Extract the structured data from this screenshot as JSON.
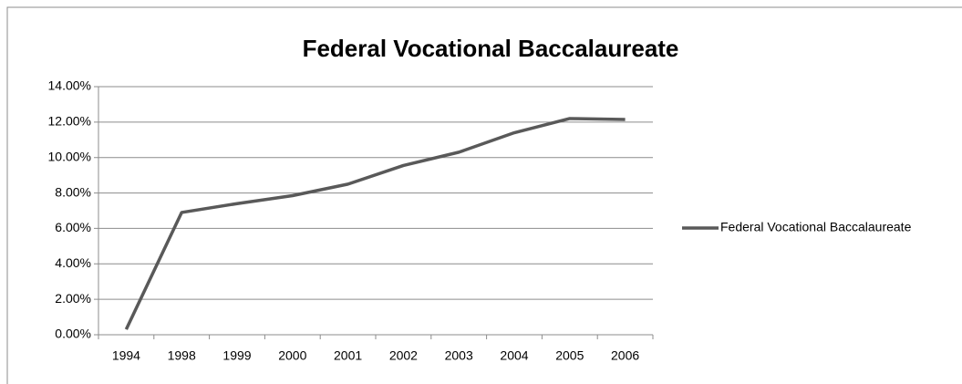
{
  "chart_data": {
    "type": "line",
    "title": "Federal Vocational Baccalaureate",
    "categories": [
      "1994",
      "1998",
      "1999",
      "2000",
      "2001",
      "2002",
      "2003",
      "2004",
      "2005",
      "2006"
    ],
    "series": [
      {
        "name": "Federal Vocational Baccalaureate",
        "color": "#595959",
        "values": [
          0.3,
          6.9,
          7.4,
          7.85,
          8.5,
          9.55,
          10.3,
          11.4,
          12.2,
          12.15
        ]
      }
    ],
    "ylim": [
      0,
      14
    ],
    "yticks": [
      {
        "value": 0,
        "label": "0.00%"
      },
      {
        "value": 2,
        "label": "2.00%"
      },
      {
        "value": 4,
        "label": "4.00%"
      },
      {
        "value": 6,
        "label": "6.00%"
      },
      {
        "value": 8,
        "label": "8.00%"
      },
      {
        "value": 10,
        "label": "10.00%"
      },
      {
        "value": 12,
        "label": "12.00%"
      },
      {
        "value": 14,
        "label": "14.00%"
      }
    ],
    "grid": true,
    "legend": "right"
  }
}
